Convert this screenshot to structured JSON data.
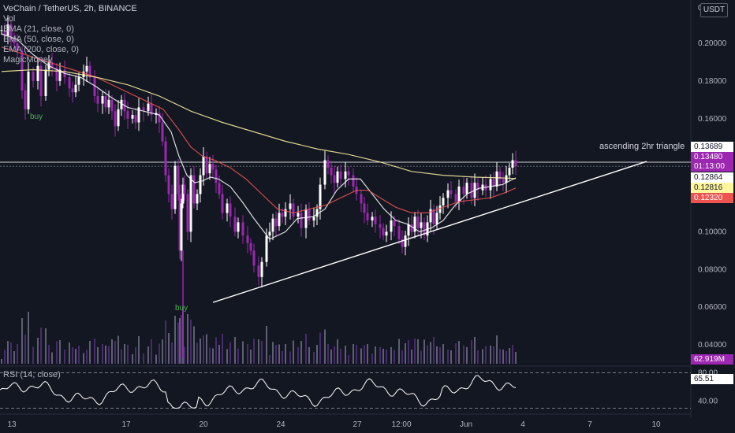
{
  "header": {
    "title": "VeChain / TetherUS, 2h, BINANCE",
    "indicators": [
      "Vol",
      "EMA (21, close, 0)",
      "EMA (50, close, 0)",
      "EMA (200, close, 0)",
      "MagicMoney"
    ]
  },
  "currency": "USDT",
  "rsi_label": "RSI (14, close)",
  "annotation": "ascending 2hr triangle",
  "signals": [
    "buy",
    "buy"
  ],
  "price_labels": [
    {
      "text": "0.13689",
      "bg": "#ffffff",
      "fg": "#131722"
    },
    {
      "text": "0.13480",
      "bg": "#9c27b0",
      "fg": "#ffffff"
    },
    {
      "text": "01:13:00",
      "bg": "#9c27b0",
      "fg": "#ffffff"
    },
    {
      "text": "0.12864",
      "bg": "#ffffff",
      "fg": "#131722"
    },
    {
      "text": "0.12816",
      "bg": "#fff59d",
      "fg": "#131722"
    },
    {
      "text": "0.12320",
      "bg": "#ef5350",
      "fg": "#ffffff"
    },
    {
      "text": "62.919M",
      "bg": "#9c27b0",
      "fg": "#ffffff"
    },
    {
      "text": "65.51",
      "bg": "#ffffff",
      "fg": "#131722"
    }
  ],
  "colors": {
    "background": "#131722",
    "candle_up": "#ffffff",
    "candle_down": "#9c27b0",
    "ema21": "#ffffff",
    "ema50": "#ef5350",
    "ema200": "#fff59d",
    "trendline": "#ffffff",
    "rsi": "#ffffff"
  },
  "chart_data": {
    "type": "line",
    "title": "VeChain / TetherUS, 2h, BINANCE",
    "xlabel": "",
    "ylabel": "",
    "x_ticks": [
      "13",
      "17",
      "20",
      "24",
      "27",
      "12:00",
      "Jun",
      "4",
      "7",
      "10"
    ],
    "y_ticks": [
      "0",
      "0.20000",
      "0.18000",
      "0.16000",
      "0.14000",
      "0.12000",
      "0.10000",
      "0.08000",
      "0.06000",
      "0.04000"
    ],
    "ylim": [
      0.03,
      0.215
    ],
    "rsi_ticks": [
      "80.00",
      "40.00"
    ],
    "rsi_ylim": [
      25,
      85
    ],
    "grid": false,
    "series": [
      {
        "name": "VeChain / TetherUS, 2h, BINANCE",
        "x": [
          0,
          4,
          8,
          12,
          16,
          20,
          26,
          30,
          34,
          40,
          46,
          50,
          56,
          60,
          64,
          70,
          74,
          80,
          86,
          90,
          94,
          98,
          104,
          108,
          112,
          118,
          122,
          128,
          132,
          136,
          140,
          144,
          148,
          152,
          156,
          160,
          166,
          170,
          174,
          180,
          186,
          190,
          196,
          200,
          204,
          208,
          212,
          216,
          220,
          224,
          226,
          228,
          230,
          232,
          236,
          240,
          244,
          248,
          252,
          256,
          260,
          264,
          268,
          272,
          276,
          280,
          286,
          290,
          296,
          300,
          306,
          312,
          316,
          320,
          326,
          330,
          336,
          340,
          344,
          348,
          352,
          356,
          360,
          366,
          370,
          376,
          380,
          386,
          390,
          396,
          400,
          404,
          410,
          414,
          418,
          422,
          426,
          430,
          436,
          440,
          446,
          450,
          456,
          460,
          464,
          470,
          474,
          480,
          484,
          488,
          494,
          498,
          504,
          508,
          512,
          516,
          520,
          524,
          528,
          532,
          536,
          540,
          544,
          548,
          552,
          556,
          560,
          566,
          570,
          576,
          580,
          586,
          590,
          596,
          600,
          604,
          610,
          614,
          620,
          624,
          628,
          632,
          636,
          640,
          644,
          648,
          652
        ],
        "y": [
          0.207,
          0.204,
          0.21,
          0.202,
          0.2,
          0.196,
          0.175,
          0.165,
          0.185,
          0.18,
          0.188,
          0.172,
          0.186,
          0.19,
          0.187,
          0.18,
          0.186,
          0.182,
          0.176,
          0.174,
          0.178,
          0.182,
          0.185,
          0.188,
          0.182,
          0.172,
          0.168,
          0.172,
          0.166,
          0.17,
          0.164,
          0.156,
          0.165,
          0.17,
          0.164,
          0.16,
          0.162,
          0.158,
          0.166,
          0.164,
          0.168,
          0.162,
          0.163,
          0.158,
          0.148,
          0.13,
          0.12,
          0.112,
          0.135,
          0.12,
          0.09,
          0.115,
          0.125,
          0.12,
          0.1,
          0.13,
          0.115,
          0.12,
          0.13,
          0.14,
          0.131,
          0.136,
          0.133,
          0.126,
          0.12,
          0.11,
          0.115,
          0.108,
          0.1,
          0.105,
          0.098,
          0.094,
          0.09,
          0.082,
          0.076,
          0.084,
          0.098,
          0.1,
          0.107,
          0.103,
          0.11,
          0.108,
          0.112,
          0.115,
          0.108,
          0.11,
          0.102,
          0.112,
          0.106,
          0.108,
          0.112,
          0.125,
          0.138,
          0.134,
          0.13,
          0.126,
          0.132,
          0.128,
          0.132,
          0.13,
          0.124,
          0.12,
          0.115,
          0.11,
          0.106,
          0.108,
          0.104,
          0.102,
          0.098,
          0.1,
          0.106,
          0.103,
          0.096,
          0.092,
          0.098,
          0.104,
          0.1,
          0.108,
          0.102,
          0.105,
          0.098,
          0.105,
          0.112,
          0.104,
          0.11,
          0.114,
          0.118,
          0.122,
          0.12,
          0.116,
          0.124,
          0.12,
          0.126,
          0.118,
          0.126,
          0.122,
          0.125,
          0.122,
          0.128,
          0.124,
          0.132,
          0.128,
          0.126,
          0.13,
          0.134,
          0.138,
          0.1348
        ]
      },
      {
        "name": "EMA (21, close, 0)",
        "x": [
          0,
          20,
          40,
          60,
          80,
          100,
          120,
          140,
          160,
          180,
          200,
          215,
          225,
          235,
          245,
          255,
          265,
          275,
          290,
          305,
          320,
          340,
          360,
          375,
          395,
          410,
          425,
          440,
          455,
          470,
          485,
          500,
          515,
          530,
          545,
          560,
          575,
          590,
          605,
          620,
          635,
          652
        ],
        "y": [
          0.205,
          0.202,
          0.194,
          0.188,
          0.184,
          0.182,
          0.177,
          0.171,
          0.166,
          0.164,
          0.162,
          0.153,
          0.14,
          0.13,
          0.126,
          0.127,
          0.129,
          0.128,
          0.124,
          0.116,
          0.107,
          0.096,
          0.1,
          0.107,
          0.108,
          0.112,
          0.122,
          0.128,
          0.128,
          0.12,
          0.112,
          0.106,
          0.104,
          0.1,
          0.102,
          0.106,
          0.114,
          0.12,
          0.123,
          0.124,
          0.125,
          0.1286
        ]
      },
      {
        "name": "EMA (50, close, 0)",
        "x": [
          0,
          30,
          60,
          90,
          120,
          150,
          180,
          205,
          225,
          240,
          255,
          270,
          290,
          310,
          330,
          350,
          370,
          390,
          410,
          430,
          450,
          465,
          480,
          500,
          520,
          540,
          560,
          580,
          600,
          620,
          640,
          652
        ],
        "y": [
          0.198,
          0.194,
          0.19,
          0.186,
          0.182,
          0.176,
          0.17,
          0.165,
          0.154,
          0.145,
          0.14,
          0.138,
          0.134,
          0.128,
          0.12,
          0.112,
          0.11,
          0.112,
          0.114,
          0.118,
          0.122,
          0.122,
          0.118,
          0.113,
          0.11,
          0.11,
          0.113,
          0.116,
          0.117,
          0.118,
          0.121,
          0.1232
        ]
      },
      {
        "name": "EMA (200, close, 0)",
        "x": [
          0,
          40,
          80,
          120,
          160,
          200,
          240,
          280,
          320,
          360,
          400,
          440,
          480,
          520,
          560,
          600,
          640,
          652
        ],
        "y": [
          0.185,
          0.186,
          0.185,
          0.182,
          0.178,
          0.172,
          0.164,
          0.158,
          0.153,
          0.148,
          0.144,
          0.141,
          0.137,
          0.132,
          0.13,
          0.129,
          0.1285,
          0.1282
        ]
      }
    ],
    "trendline": {
      "x": [
        270,
        820
      ],
      "y": [
        0.0625,
        0.1373
      ]
    },
    "resistance_levels": [
      0.1369,
      0.1348
    ],
    "volume": {
      "last": "62.919M"
    },
    "rsi": {
      "name": "RSI (14, close)",
      "last": 65.51
    }
  }
}
